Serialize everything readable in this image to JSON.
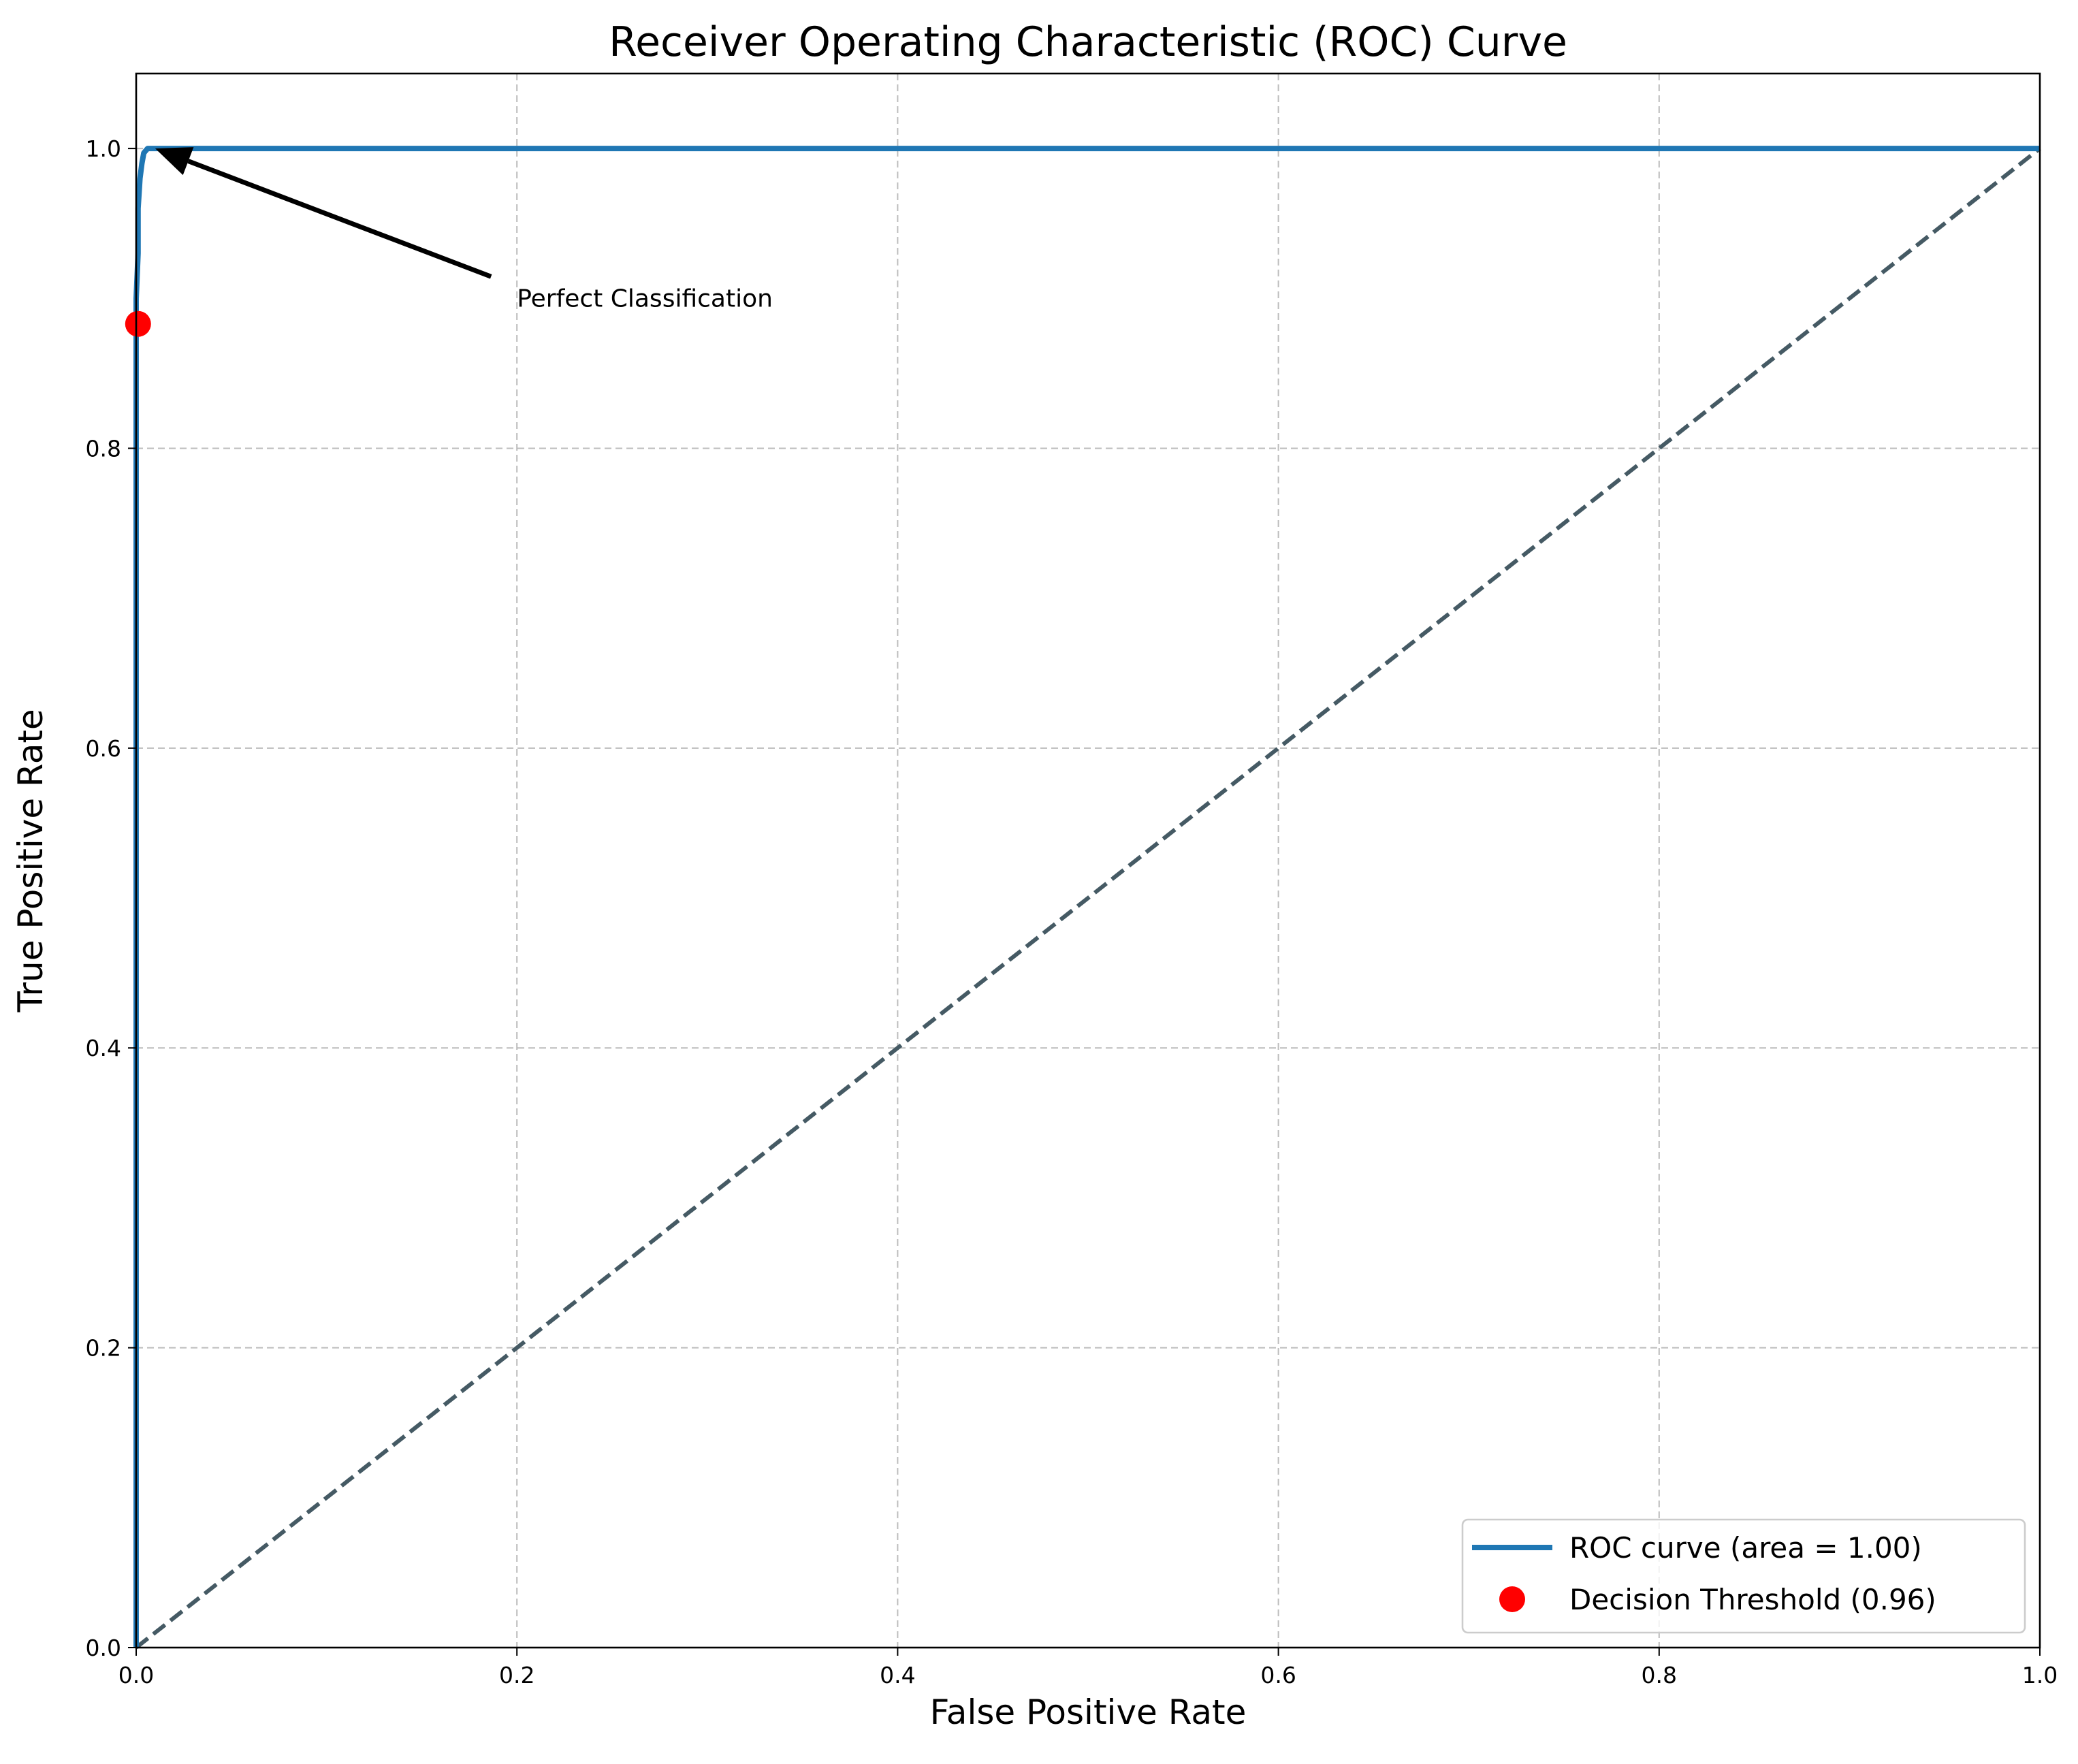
{
  "chart_data": {
    "type": "line",
    "title": "Receiver Operating Characteristic (ROC) Curve",
    "xlabel": "False Positive Rate",
    "ylabel": "True Positive Rate",
    "xlim": [
      0.0,
      1.0
    ],
    "ylim": [
      0.0,
      1.05
    ],
    "x_ticks": [
      "0.0",
      "0.2",
      "0.4",
      "0.6",
      "0.8",
      "1.0"
    ],
    "y_ticks": [
      "0.0",
      "0.2",
      "0.4",
      "0.6",
      "0.8",
      "1.0"
    ],
    "grid": true,
    "legend_position": "lower right",
    "series": [
      {
        "name": "ROC curve (area = 1.00)",
        "color": "#1f77b4",
        "style": "solid",
        "x": [
          0.0,
          0.0,
          0.0,
          0.001,
          0.001,
          0.002,
          0.003,
          0.004,
          0.006,
          0.01,
          1.0
        ],
        "y": [
          0.0,
          0.5,
          0.9,
          0.93,
          0.96,
          0.98,
          0.99,
          0.997,
          1.0,
          1.0,
          1.0
        ]
      },
      {
        "name": "",
        "color": "#455a64",
        "style": "dashed",
        "x": [
          0.0,
          1.0
        ],
        "y": [
          0.0,
          1.0
        ]
      }
    ],
    "points": [
      {
        "name": "Decision Threshold (0.96)",
        "color": "#ff0000",
        "x": 0.001,
        "y": 0.883
      }
    ],
    "annotations": [
      {
        "text": "Perfect Classification",
        "text_x": 0.2,
        "text_y": 0.9,
        "arrow_to_x": 0.01,
        "arrow_to_y": 1.0
      }
    ],
    "legend": [
      {
        "label": "ROC curve (area = 1.00)",
        "kind": "line",
        "color": "#1f77b4"
      },
      {
        "label": "Decision Threshold (0.96)",
        "kind": "marker",
        "color": "#ff0000"
      }
    ]
  }
}
